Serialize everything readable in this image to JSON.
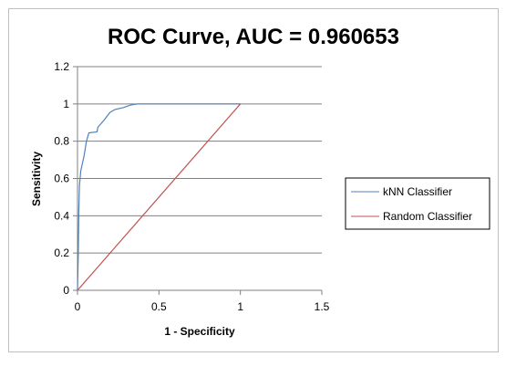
{
  "chart_data": {
    "type": "line",
    "title": "ROC Curve, AUC = 0.960653",
    "xlabel": "1 - Specificity",
    "ylabel": "Sensitivity",
    "xlim": [
      0,
      1.5
    ],
    "ylim": [
      0,
      1.2
    ],
    "x_ticks": [
      "0",
      "0.5",
      "1",
      "1.5"
    ],
    "y_ticks": [
      "0",
      "0.2",
      "0.4",
      "0.6",
      "0.8",
      "1",
      "1.2"
    ],
    "grid": "horizontal",
    "legend_position": "right",
    "series": [
      {
        "name": "kNN Classifier",
        "color": "#4f81bd",
        "points": [
          [
            0,
            0
          ],
          [
            0.005,
            0.2
          ],
          [
            0.008,
            0.42
          ],
          [
            0.012,
            0.56
          ],
          [
            0.02,
            0.64
          ],
          [
            0.04,
            0.72
          ],
          [
            0.055,
            0.8
          ],
          [
            0.07,
            0.845
          ],
          [
            0.12,
            0.85
          ],
          [
            0.125,
            0.875
          ],
          [
            0.16,
            0.91
          ],
          [
            0.2,
            0.955
          ],
          [
            0.23,
            0.97
          ],
          [
            0.28,
            0.98
          ],
          [
            0.33,
            0.995
          ],
          [
            0.37,
            1.0
          ],
          [
            1.0,
            1.0
          ]
        ]
      },
      {
        "name": "Random Classifier",
        "color": "#c0504d",
        "points": [
          [
            0,
            0
          ],
          [
            1,
            1
          ]
        ]
      }
    ]
  }
}
